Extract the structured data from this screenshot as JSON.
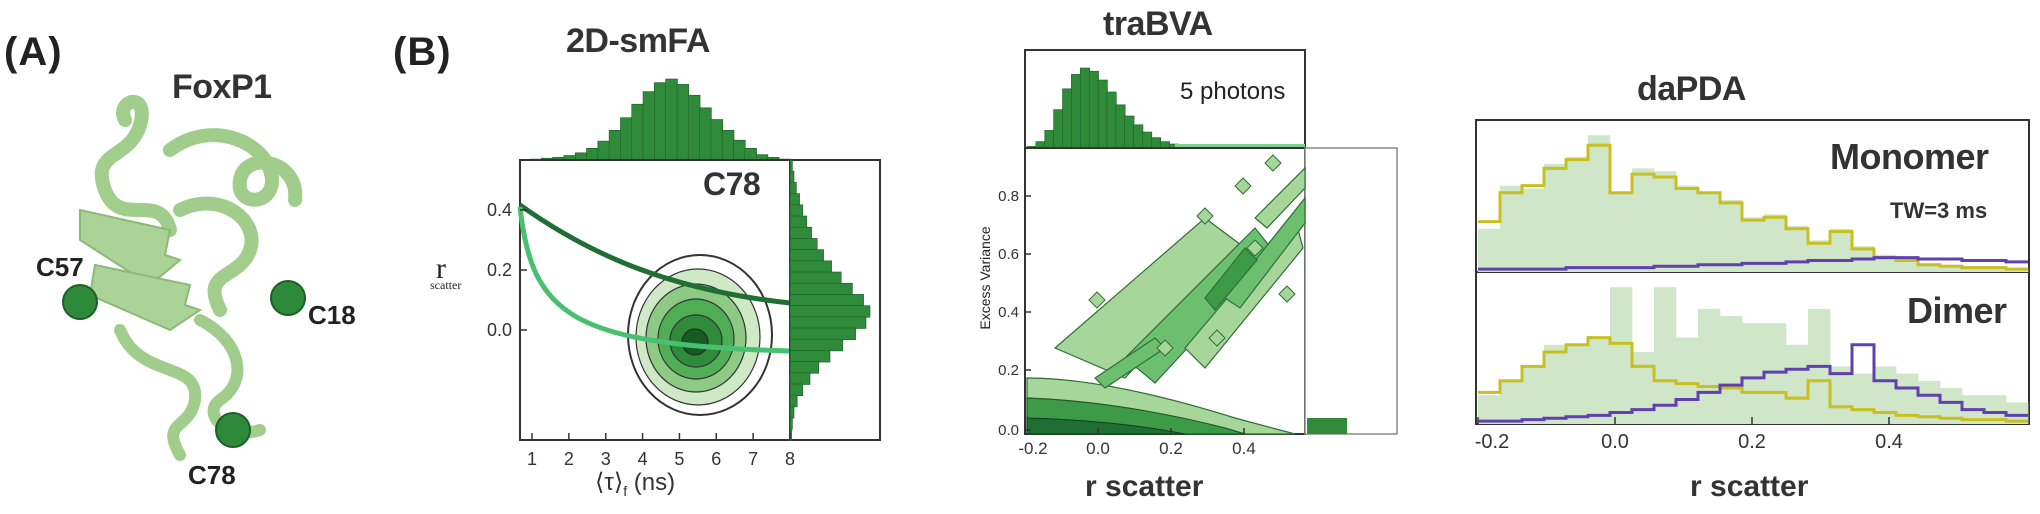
{
  "panels": {
    "a": {
      "label": "(A)",
      "protein": "FoxP1",
      "sites": [
        "C57",
        "C18",
        "C78"
      ],
      "colors": {
        "ribbon": "#a6d08e",
        "ribbon_dark": "#7fb565",
        "site": "#2c8a3a"
      }
    },
    "b": {
      "label": "(B)",
      "smfa": {
        "title": "2D-smFA",
        "annotation": "C78",
        "ylabel": "r",
        "ylabel_sub": "scatter",
        "xlabel_main": "⟨τ⟩",
        "xlabel_sub": "f",
        "xlabel_unit": " (ns)",
        "xticks": [
          "1",
          "2",
          "3",
          "4",
          "5",
          "6",
          "7",
          "8"
        ],
        "yticks": [
          "0.4",
          "0.2",
          "0.0"
        ],
        "top_hist": [
          1,
          2,
          3,
          5,
          8,
          13,
          21,
          33,
          47,
          62,
          76,
          86,
          90,
          84,
          72,
          58,
          45,
          33,
          22,
          13,
          6,
          3,
          1
        ],
        "side_hist": [
          3,
          5,
          8,
          12,
          16,
          21,
          27,
          34,
          42,
          52,
          64,
          78,
          92,
          100,
          95,
          82,
          66,
          50,
          36,
          25,
          16,
          9,
          5,
          3,
          2
        ]
      },
      "bva": {
        "title": "traBVA",
        "annotation": "5 photons",
        "ylabel": "Excess Variance",
        "xlabel": "r scatter",
        "xticks": [
          "-0.2",
          "0.0",
          "0.2",
          "0.4"
        ],
        "yticks": [
          "0.8",
          "0.6",
          "0.4",
          "0.2",
          "0.0"
        ],
        "top_hist": [
          2,
          8,
          22,
          48,
          74,
          92,
          100,
          96,
          85,
          70,
          54,
          40,
          29,
          20,
          13,
          8,
          5,
          3,
          2,
          1,
          1,
          1,
          0,
          0,
          0,
          0,
          0,
          0,
          0,
          0
        ]
      },
      "pda": {
        "title": "daPDA",
        "monomer_label": "Monomer",
        "tw_label": "TW=3 ms",
        "dimer_label": "Dimer",
        "xlabel": "r scatter",
        "xticks": [
          "-0.2",
          "0.0",
          "0.2",
          "0.4"
        ],
        "colors": {
          "bars": "#cfe6c8",
          "fit": "#c8c020",
          "low": "#6040b0"
        },
        "monomer_bars": [
          0.3,
          0.6,
          0.58,
          0.75,
          0.8,
          0.95,
          0.55,
          0.72,
          0.7,
          0.6,
          0.55,
          0.5,
          0.38,
          0.4,
          0.32,
          0.22,
          0.3,
          0.18,
          0.12,
          0.1,
          0.06,
          0.05,
          0.04,
          0.04,
          0.03
        ],
        "monomer_fit": [
          0.35,
          0.55,
          0.6,
          0.72,
          0.78,
          0.88,
          0.55,
          0.68,
          0.66,
          0.58,
          0.55,
          0.48,
          0.36,
          0.38,
          0.3,
          0.2,
          0.28,
          0.16,
          0.1,
          0.08,
          0.05,
          0.04,
          0.03,
          0.03,
          0.02
        ],
        "monomer_low": [
          0.02,
          0.02,
          0.02,
          0.02,
          0.03,
          0.03,
          0.03,
          0.03,
          0.04,
          0.04,
          0.05,
          0.05,
          0.06,
          0.06,
          0.07,
          0.08,
          0.08,
          0.09,
          0.1,
          0.1,
          0.09,
          0.09,
          0.08,
          0.08,
          0.07
        ],
        "dimer_bars": [
          0.2,
          0.3,
          0.4,
          0.55,
          0.55,
          0.6,
          0.95,
          0.5,
          0.95,
          0.6,
          0.8,
          0.75,
          0.7,
          0.7,
          0.55,
          0.8,
          0.4,
          0.35,
          0.4,
          0.35,
          0.3,
          0.25,
          0.2,
          0.2,
          0.15
        ],
        "dimer_fit": [
          0.22,
          0.3,
          0.4,
          0.5,
          0.55,
          0.6,
          0.56,
          0.4,
          0.3,
          0.28,
          0.26,
          0.25,
          0.22,
          0.22,
          0.18,
          0.3,
          0.12,
          0.1,
          0.08,
          0.06,
          0.05,
          0.04,
          0.03,
          0.03,
          0.02
        ],
        "dimer_low": [
          0.02,
          0.02,
          0.03,
          0.04,
          0.05,
          0.06,
          0.08,
          0.1,
          0.13,
          0.17,
          0.22,
          0.27,
          0.32,
          0.36,
          0.38,
          0.4,
          0.35,
          0.55,
          0.3,
          0.25,
          0.2,
          0.15,
          0.1,
          0.08,
          0.06
        ]
      }
    }
  }
}
